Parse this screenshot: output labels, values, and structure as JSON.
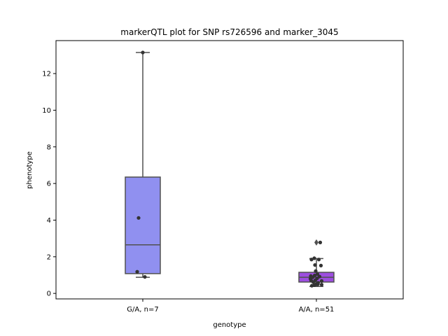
{
  "chart_data": {
    "type": "box",
    "title": "markerQTL plot for SNP rs726596 and marker_3045",
    "xlabel": "genotype",
    "ylabel": "phenotype",
    "ylim": [
      -0.3,
      13.8
    ],
    "yticks": [
      0,
      2,
      4,
      6,
      8,
      10,
      12
    ],
    "grid": false,
    "categories": [
      "G/A, n=7",
      "A/A, n=51"
    ],
    "boxes": [
      {
        "category": "G/A, n=7",
        "color": "#9090f0",
        "q1": 1.08,
        "median": 2.65,
        "q3": 6.35,
        "whisker_low": 0.88,
        "whisker_high": 13.15,
        "outliers": [],
        "points": [
          {
            "x": 0.0,
            "y": 13.15
          },
          {
            "x": -0.12,
            "y": 4.12
          },
          {
            "x": -0.16,
            "y": 1.18
          },
          {
            "x": 0.06,
            "y": 0.9
          }
        ]
      },
      {
        "category": "A/A, n=51",
        "color": "#9d4ee0",
        "q1": 0.62,
        "median": 0.88,
        "q3": 1.15,
        "whisker_low": 0.38,
        "whisker_high": 1.9,
        "outliers": [
          2.78
        ],
        "points": [
          {
            "x": 0.11,
            "y": 2.78
          },
          {
            "x": -0.14,
            "y": 1.85
          },
          {
            "x": -0.06,
            "y": 1.92
          },
          {
            "x": 0.07,
            "y": 1.85
          },
          {
            "x": -0.04,
            "y": 1.55
          },
          {
            "x": 0.13,
            "y": 1.52
          },
          {
            "x": -0.02,
            "y": 1.22
          },
          {
            "x": 0.03,
            "y": 1.05
          },
          {
            "x": -0.16,
            "y": 0.95
          },
          {
            "x": -0.11,
            "y": 0.88
          },
          {
            "x": -0.05,
            "y": 0.98
          },
          {
            "x": 0.02,
            "y": 0.82
          },
          {
            "x": -0.15,
            "y": 0.7
          },
          {
            "x": -0.09,
            "y": 0.62
          },
          {
            "x": -0.03,
            "y": 0.72
          },
          {
            "x": 0.05,
            "y": 0.58
          },
          {
            "x": 0.15,
            "y": 0.68
          },
          {
            "x": -0.13,
            "y": 0.42
          },
          {
            "x": -0.01,
            "y": 0.5
          },
          {
            "x": 0.04,
            "y": 0.5
          },
          {
            "x": 0.15,
            "y": 0.48
          },
          {
            "x": -0.06,
            "y": 0.45
          },
          {
            "x": 0.09,
            "y": 0.92
          },
          {
            "x": -0.17,
            "y": 0.8
          }
        ]
      }
    ]
  }
}
